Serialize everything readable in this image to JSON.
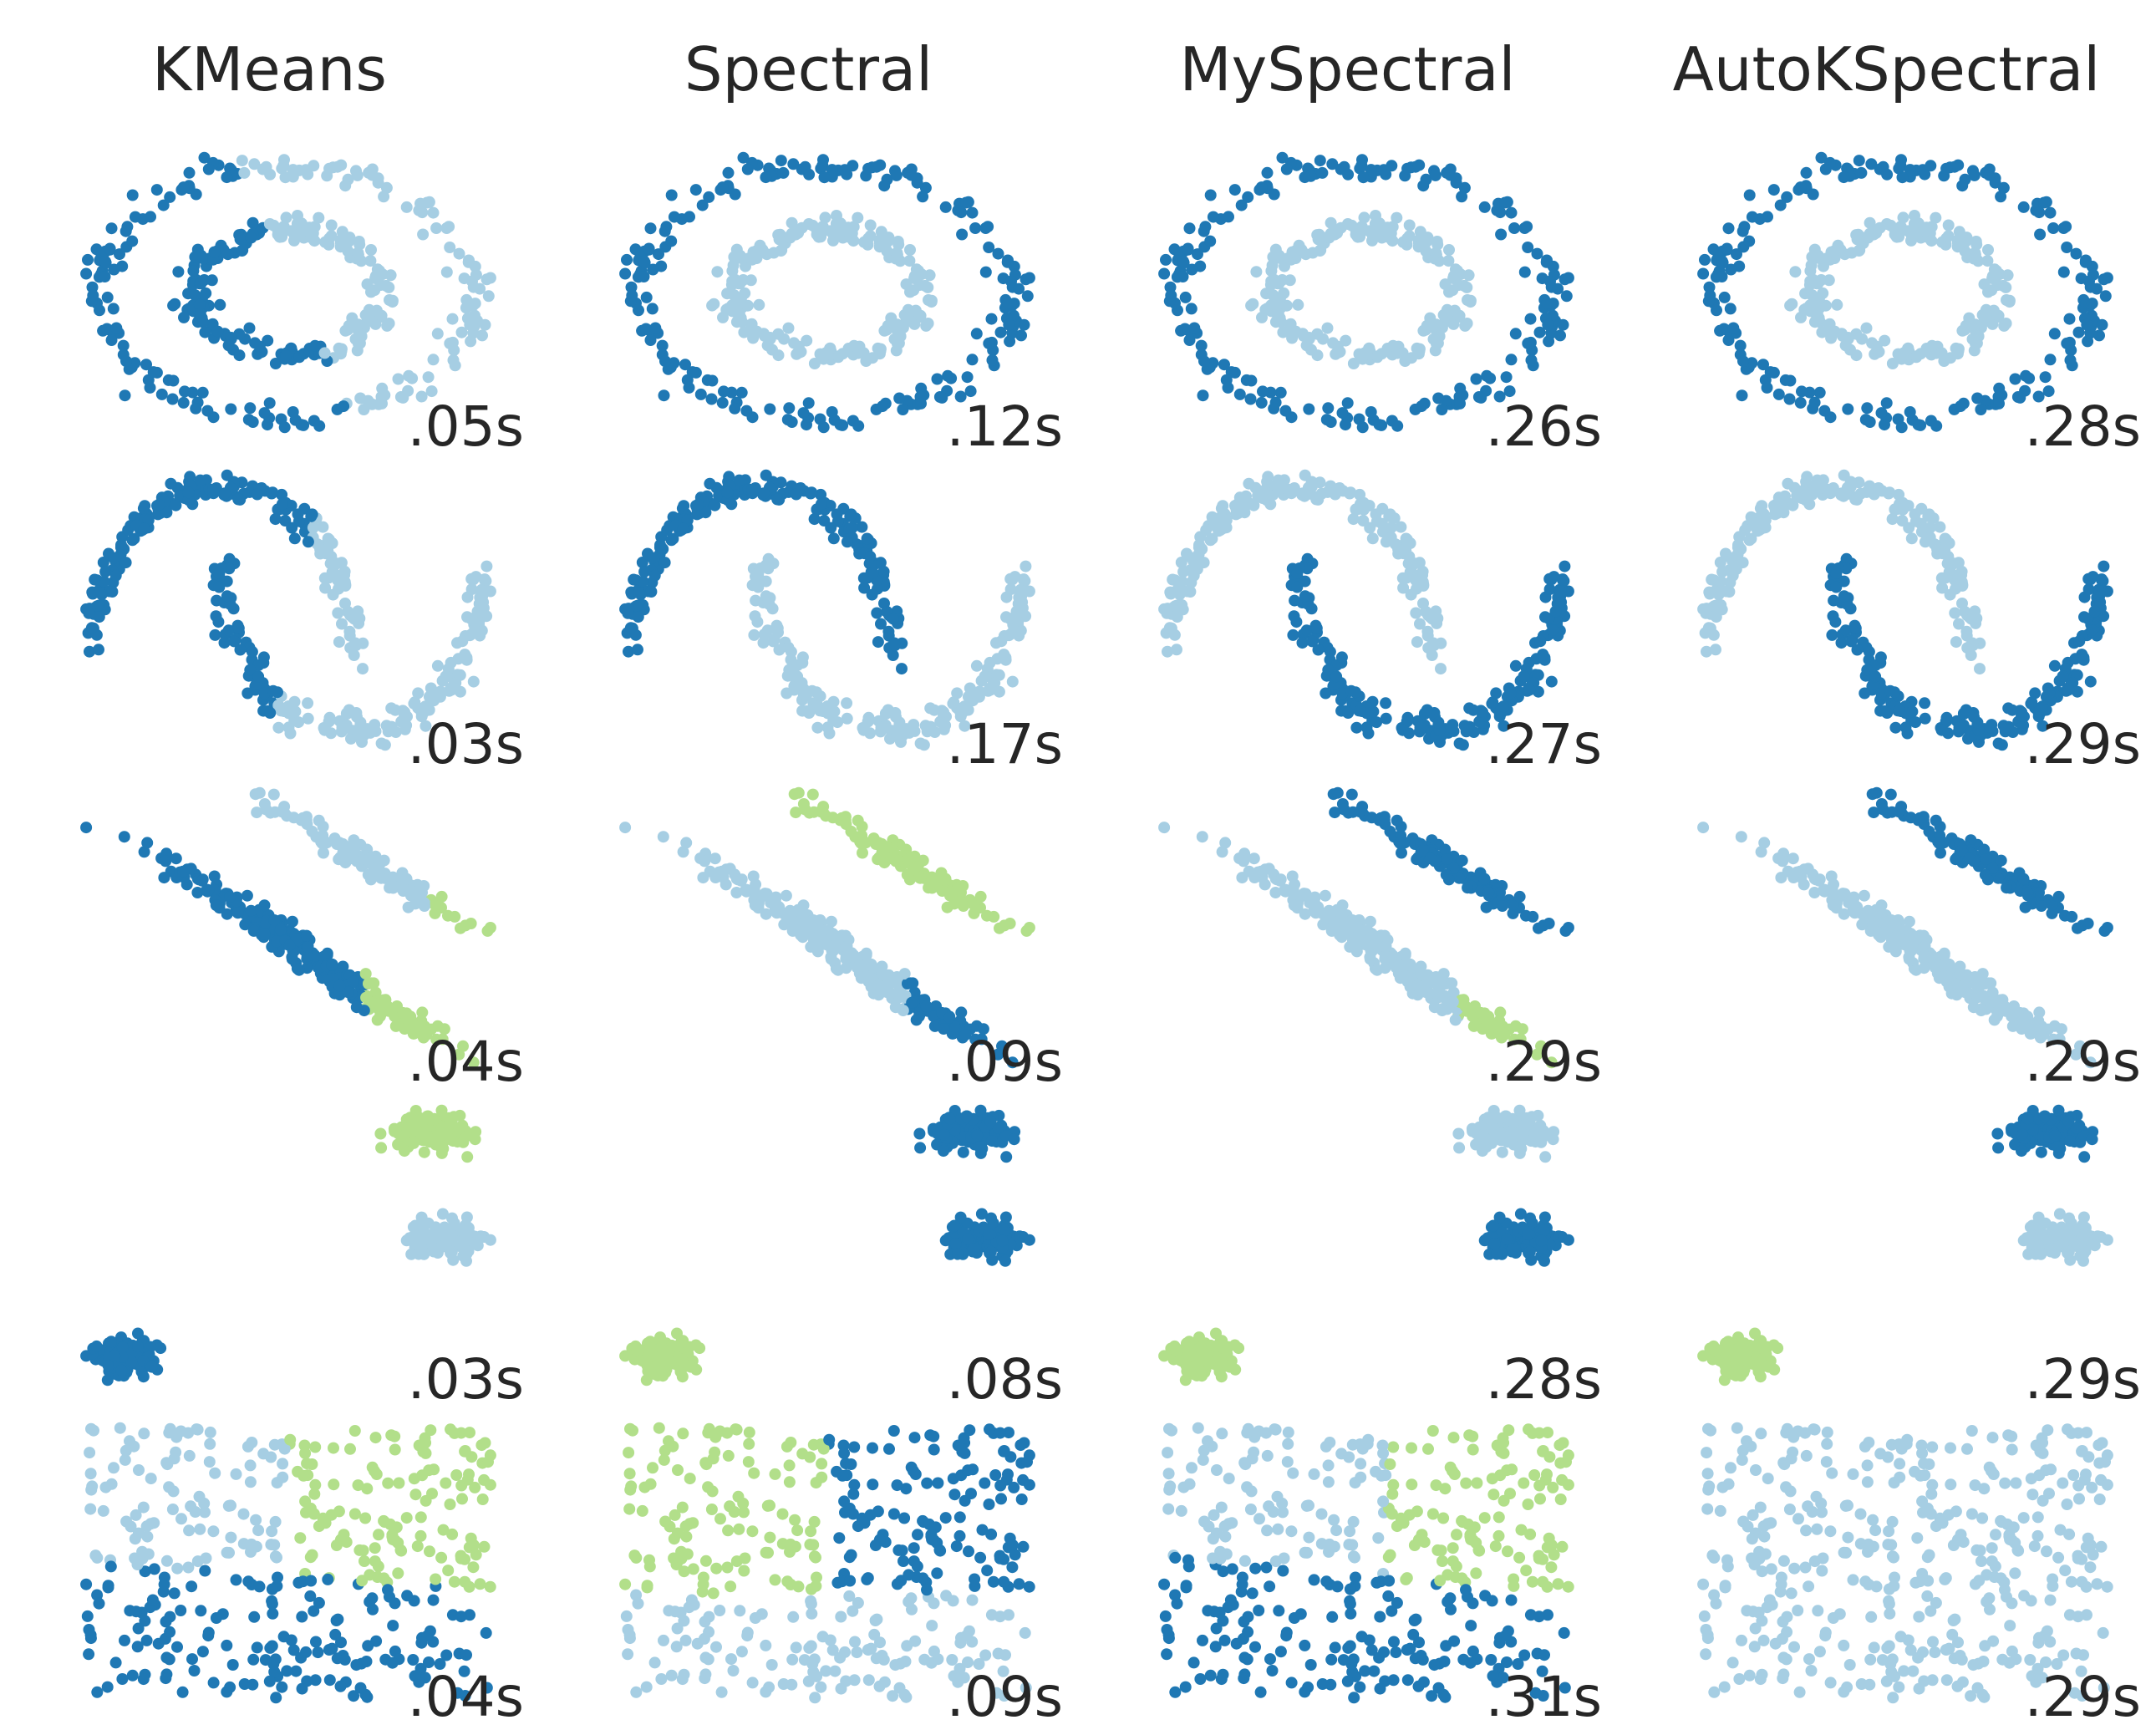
{
  "palette": {
    "c0": "#1f78b4",
    "c1": "#a6cee3",
    "c2": "#b2df8a"
  },
  "chart_data": {
    "type": "scatter",
    "grid": false,
    "axes": "hidden",
    "columns": [
      "KMeans",
      "Spectral",
      "MySpectral",
      "AutoKSpectral"
    ],
    "rows": [
      {
        "dataset": "circles",
        "times": [
          ".05s",
          ".12s",
          ".26s",
          ".28s"
        ],
        "assignments": [
          "kmeans-split",
          "rings",
          "rings",
          "rings"
        ]
      },
      {
        "dataset": "moons",
        "times": [
          ".03s",
          ".17s",
          ".27s",
          ".29s"
        ],
        "assignments": [
          "kmeans-split",
          "moons",
          "moons-swapped",
          "moons-swapped"
        ]
      },
      {
        "dataset": "aniso",
        "times": [
          ".04s",
          ".09s",
          ".29s",
          ".29s"
        ],
        "assignments": [
          "kmeans-3",
          "spectral-3",
          "myspectral-3",
          "autok-2"
        ]
      },
      {
        "dataset": "blobs",
        "times": [
          ".03s",
          ".08s",
          ".28s",
          ".29s"
        ],
        "assignments": [
          "kmeans-3",
          "spectral-3",
          "myspectral-3",
          "autok-3"
        ]
      },
      {
        "dataset": "no_structure",
        "times": [
          ".04s",
          ".09s",
          ".31s",
          ".29s"
        ],
        "assignments": [
          "kmeans-3",
          "spectral-3",
          "myspectral-3",
          "single"
        ]
      }
    ]
  }
}
